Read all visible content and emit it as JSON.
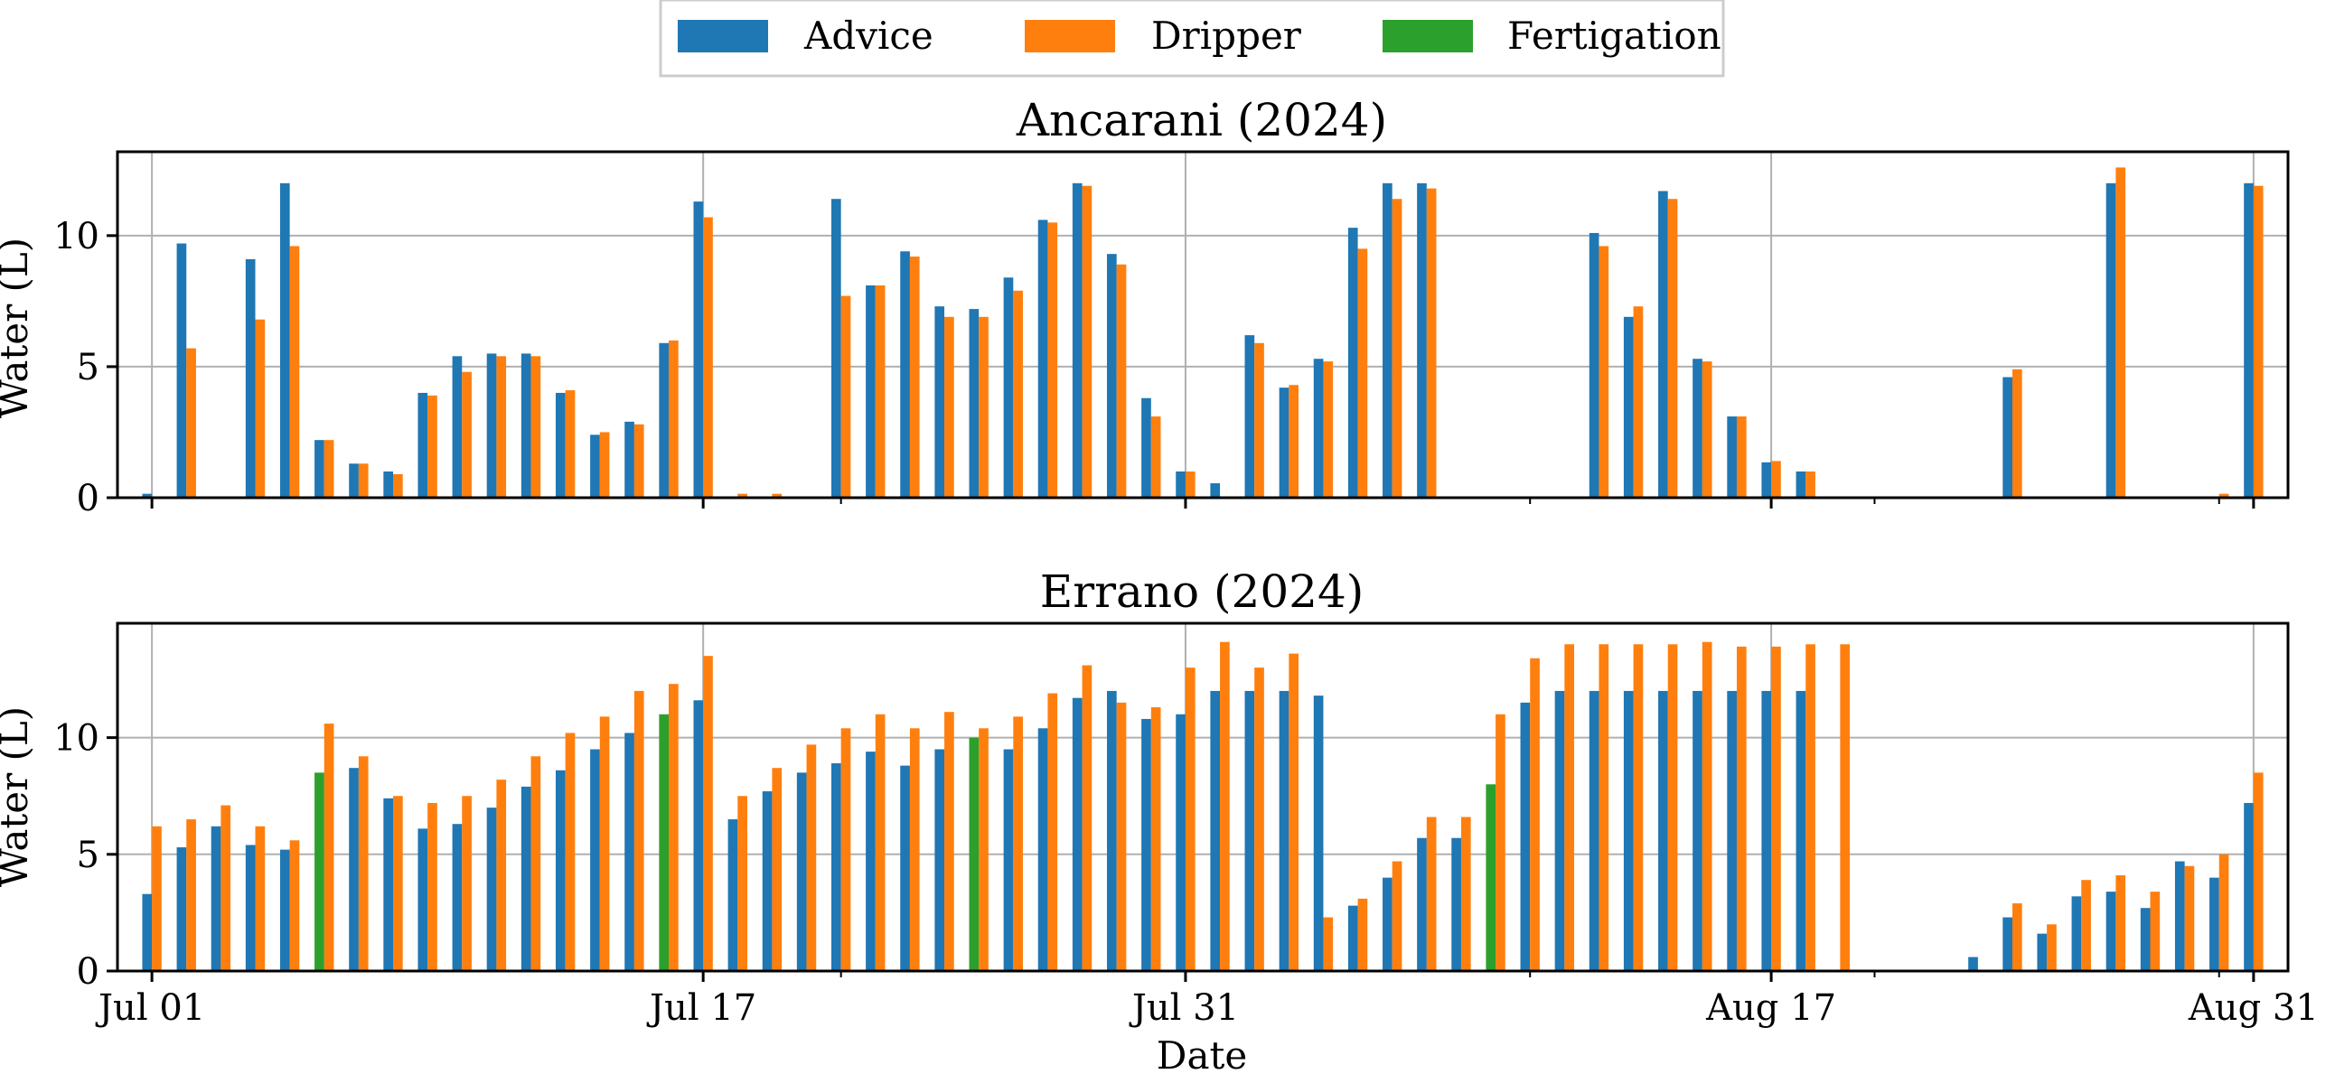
{
  "legend": {
    "placement": "top-center",
    "items": [
      {
        "label": "Advice",
        "color": "#1f77b4"
      },
      {
        "label": "Dripper",
        "color": "#ff7f0e"
      },
      {
        "label": "Fertigation",
        "color": "#2ca02c"
      }
    ]
  },
  "xlabel": "Date",
  "chart_data": [
    {
      "type": "bar",
      "title": "Ancarani (2024)",
      "ylabel": "Water (L)",
      "xlabel": "",
      "ylim": [
        0,
        13.2
      ],
      "xlim": [
        "2024-06-30",
        "2024-09-01"
      ],
      "grid": true,
      "y_ticks": [
        0,
        5,
        10
      ],
      "x_ticks": [
        {
          "date": "2024-07-01",
          "label": ""
        },
        {
          "date": "2024-07-17",
          "label": ""
        },
        {
          "date": "2024-07-31",
          "label": ""
        },
        {
          "date": "2024-08-17",
          "label": ""
        },
        {
          "date": "2024-08-31",
          "label": ""
        }
      ],
      "x_minor": [
        "2024-07-21",
        "2024-08-10",
        "2024-08-20",
        "2024-08-30"
      ],
      "x": [
        "2024-07-01",
        "2024-07-02",
        "2024-07-03",
        "2024-07-04",
        "2024-07-05",
        "2024-07-06",
        "2024-07-07",
        "2024-07-08",
        "2024-07-09",
        "2024-07-10",
        "2024-07-11",
        "2024-07-12",
        "2024-07-13",
        "2024-07-14",
        "2024-07-15",
        "2024-07-16",
        "2024-07-17",
        "2024-07-18",
        "2024-07-19",
        "2024-07-20",
        "2024-07-21",
        "2024-07-22",
        "2024-07-23",
        "2024-07-24",
        "2024-07-25",
        "2024-07-26",
        "2024-07-27",
        "2024-07-28",
        "2024-07-29",
        "2024-07-30",
        "2024-07-31",
        "2024-08-01",
        "2024-08-02",
        "2024-08-03",
        "2024-08-04",
        "2024-08-05",
        "2024-08-06",
        "2024-08-07",
        "2024-08-08",
        "2024-08-09",
        "2024-08-10",
        "2024-08-11",
        "2024-08-12",
        "2024-08-13",
        "2024-08-14",
        "2024-08-15",
        "2024-08-16",
        "2024-08-17",
        "2024-08-18",
        "2024-08-19",
        "2024-08-20",
        "2024-08-21",
        "2024-08-22",
        "2024-08-23",
        "2024-08-24",
        "2024-08-25",
        "2024-08-26",
        "2024-08-27",
        "2024-08-28",
        "2024-08-29",
        "2024-08-30",
        "2024-08-31"
      ],
      "series": [
        {
          "name": "Advice",
          "color": "#1f77b4",
          "offset": -1,
          "values": [
            0.15,
            9.7,
            0,
            9.1,
            12.0,
            2.2,
            1.3,
            1.0,
            4.0,
            5.4,
            5.5,
            5.5,
            4.0,
            2.4,
            2.9,
            5.9,
            11.3,
            0,
            0,
            0,
            11.4,
            8.1,
            9.4,
            7.3,
            7.2,
            8.4,
            10.6,
            12.0,
            9.3,
            3.8,
            1.0,
            0.55,
            6.2,
            4.2,
            5.3,
            10.3,
            12.0,
            12.0,
            0,
            0,
            0,
            0,
            10.1,
            6.9,
            11.7,
            5.3,
            3.1,
            1.35,
            1.0,
            0,
            0,
            0,
            0,
            0,
            4.6,
            0,
            0,
            12.0,
            0,
            0,
            0,
            12.0
          ]
        },
        {
          "name": "Dripper",
          "color": "#ff7f0e",
          "offset": 0,
          "values": [
            0,
            5.7,
            0,
            6.8,
            9.6,
            2.2,
            1.3,
            0.9,
            3.9,
            4.8,
            5.4,
            5.4,
            4.1,
            2.5,
            2.8,
            6.0,
            10.7,
            0.15,
            0.15,
            0,
            7.7,
            8.1,
            9.2,
            6.9,
            6.9,
            7.9,
            10.5,
            11.9,
            8.9,
            3.1,
            1.0,
            0,
            5.9,
            4.3,
            5.2,
            9.5,
            11.4,
            11.8,
            0,
            0,
            0,
            0,
            9.6,
            7.3,
            11.4,
            5.2,
            3.1,
            1.4,
            1.0,
            0,
            0,
            0,
            0,
            0,
            4.9,
            0,
            0,
            12.6,
            0,
            0,
            0.15,
            11.9
          ]
        }
      ]
    },
    {
      "type": "bar",
      "title": "Errano (2024)",
      "ylabel": "Water (L)",
      "xlabel": "Date",
      "ylim": [
        0,
        14.9
      ],
      "xlim": [
        "2024-06-30",
        "2024-09-01"
      ],
      "grid": true,
      "y_ticks": [
        0,
        5,
        10
      ],
      "x_ticks": [
        {
          "date": "2024-07-01",
          "label": "Jul 01"
        },
        {
          "date": "2024-07-17",
          "label": "Jul 17"
        },
        {
          "date": "2024-07-31",
          "label": "Jul 31"
        },
        {
          "date": "2024-08-17",
          "label": "Aug 17"
        },
        {
          "date": "2024-08-31",
          "label": "Aug 31"
        }
      ],
      "x_minor": [
        "2024-07-21",
        "2024-08-10",
        "2024-08-20",
        "2024-08-30"
      ],
      "x": [
        "2024-07-01",
        "2024-07-02",
        "2024-07-03",
        "2024-07-04",
        "2024-07-05",
        "2024-07-06",
        "2024-07-07",
        "2024-07-08",
        "2024-07-09",
        "2024-07-10",
        "2024-07-11",
        "2024-07-12",
        "2024-07-13",
        "2024-07-14",
        "2024-07-15",
        "2024-07-16",
        "2024-07-17",
        "2024-07-18",
        "2024-07-19",
        "2024-07-20",
        "2024-07-21",
        "2024-07-22",
        "2024-07-23",
        "2024-07-24",
        "2024-07-25",
        "2024-07-26",
        "2024-07-27",
        "2024-07-28",
        "2024-07-29",
        "2024-07-30",
        "2024-07-31",
        "2024-08-01",
        "2024-08-02",
        "2024-08-03",
        "2024-08-04",
        "2024-08-05",
        "2024-08-06",
        "2024-08-07",
        "2024-08-08",
        "2024-08-09",
        "2024-08-10",
        "2024-08-11",
        "2024-08-12",
        "2024-08-13",
        "2024-08-14",
        "2024-08-15",
        "2024-08-16",
        "2024-08-17",
        "2024-08-18",
        "2024-08-19",
        "2024-08-20",
        "2024-08-21",
        "2024-08-22",
        "2024-08-23",
        "2024-08-24",
        "2024-08-25",
        "2024-08-26",
        "2024-08-27",
        "2024-08-28",
        "2024-08-29",
        "2024-08-30",
        "2024-08-31"
      ],
      "series": [
        {
          "name": "Advice",
          "color": "#1f77b4",
          "offset": -1,
          "values": [
            3.3,
            5.3,
            6.2,
            5.4,
            5.2,
            0,
            8.7,
            7.4,
            6.1,
            6.3,
            7.0,
            7.9,
            8.6,
            9.5,
            10.2,
            0,
            11.6,
            6.5,
            7.7,
            8.5,
            8.9,
            9.4,
            8.8,
            9.5,
            0,
            9.5,
            10.4,
            11.7,
            12.0,
            10.8,
            11.0,
            12.0,
            12.0,
            12.0,
            11.8,
            2.8,
            4.0,
            5.7,
            5.7,
            0,
            11.5,
            12.0,
            12.0,
            12.0,
            12.0,
            12.0,
            12.0,
            12.0,
            12.0,
            0,
            0,
            0,
            0,
            0.6,
            2.3,
            1.6,
            3.2,
            3.4,
            2.7,
            4.7,
            4.0,
            7.2
          ]
        },
        {
          "name": "Dripper",
          "color": "#ff7f0e",
          "offset": 0,
          "values": [
            6.2,
            6.5,
            7.1,
            6.2,
            5.6,
            10.6,
            9.2,
            7.5,
            7.2,
            7.5,
            8.2,
            9.2,
            10.2,
            10.9,
            12.0,
            12.3,
            13.5,
            7.5,
            8.7,
            9.7,
            10.4,
            11.0,
            10.4,
            11.1,
            10.4,
            10.9,
            11.9,
            13.1,
            11.5,
            11.3,
            13.0,
            14.1,
            13.0,
            13.6,
            2.3,
            3.1,
            4.7,
            6.6,
            6.6,
            11.0,
            13.4,
            14.0,
            14.0,
            14.0,
            14.0,
            14.1,
            13.9,
            13.9,
            14.0,
            14.0,
            0,
            0,
            0,
            0,
            2.9,
            2.0,
            3.9,
            4.1,
            3.4,
            4.5,
            5.0,
            8.5
          ]
        },
        {
          "name": "Fertigation",
          "color": "#2ca02c",
          "offset": -1,
          "values": [
            0,
            0,
            0,
            0,
            0,
            8.5,
            0,
            0,
            0,
            0,
            0,
            0,
            0,
            0,
            0,
            11.0,
            0,
            0,
            0,
            0,
            0,
            0,
            0,
            0,
            10.0,
            0,
            0,
            0,
            0,
            0,
            0,
            0,
            0,
            0,
            0,
            0,
            0,
            0,
            0,
            8.0,
            0,
            0,
            0,
            0,
            0,
            0,
            0,
            0,
            0,
            0,
            0,
            0,
            0,
            0,
            0,
            0,
            0,
            0,
            0,
            0,
            0,
            0
          ]
        }
      ]
    }
  ]
}
